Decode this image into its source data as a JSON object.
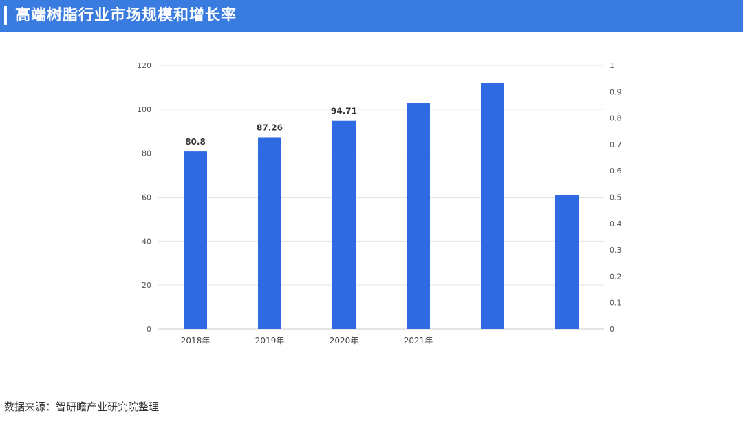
{
  "header": {
    "title": "高端树脂行业市场规模和增长率"
  },
  "chart_data": {
    "type": "bar",
    "title": "",
    "xlabel": "",
    "ylabel": "",
    "categories": [
      "2018年",
      "2019年",
      "2020年",
      "2021年",
      "",
      ""
    ],
    "series": [
      {
        "values": [
          80.8,
          87.26,
          94.71,
          103,
          112,
          61
        ]
      }
    ],
    "data_labels": [
      "80.8",
      "87.26",
      "94.71",
      "",
      "",
      ""
    ],
    "ylim": [
      0,
      120
    ],
    "yticks": [
      "0",
      "20",
      "40",
      "60",
      "80",
      "100",
      "120"
    ],
    "y2lim": [
      0,
      1
    ],
    "y2ticks": [
      "0",
      "0.1",
      "0.2",
      "0.3",
      "0.4",
      "0.5",
      "0.6",
      "0.7",
      "0.8",
      "0.9",
      "1"
    ],
    "grid": true,
    "bar_color": "#2f6ae2"
  },
  "footer": {
    "source": "数据来源：智研瞻产业研究院整理"
  }
}
